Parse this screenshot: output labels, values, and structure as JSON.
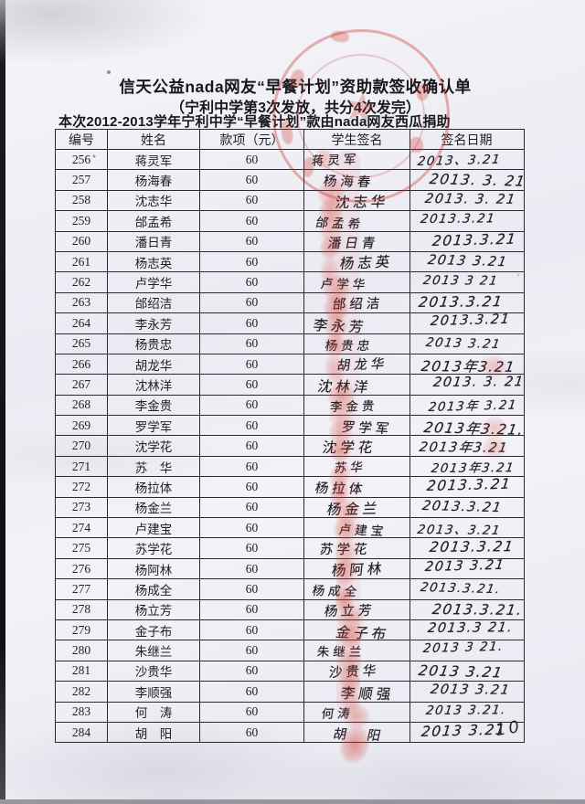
{
  "page": {
    "title": "信天公益nada网友“早餐计划”资助款签收确认单",
    "subtitle": "（宁利中学第3次发放，共分4次发完）",
    "note": "本次2012-2013学年宁利中学“早餐计划”款由nada网友西瓜捐助",
    "page_number": "10"
  },
  "table": {
    "headers": [
      "编号",
      "姓名",
      "款项（元）",
      "学生签名",
      "签名日期"
    ],
    "rows": [
      {
        "no": "256",
        "name": "蒋灵军",
        "amount": "60",
        "signature": "蒋灵军",
        "date": "2013、3.21"
      },
      {
        "no": "257",
        "name": "杨海春",
        "amount": "60",
        "signature": "杨海春",
        "date": "2013. 3. 21"
      },
      {
        "no": "258",
        "name": "沈志华",
        "amount": "60",
        "signature": "沈志华",
        "date": "2013. 3. 21"
      },
      {
        "no": "259",
        "name": "邰孟希",
        "amount": "60",
        "signature": "邰孟希",
        "date": "2013.3.21"
      },
      {
        "no": "260",
        "name": "潘日青",
        "amount": "60",
        "signature": "潘日青",
        "date": "2013.3.21"
      },
      {
        "no": "261",
        "name": "杨志英",
        "amount": "60",
        "signature": "杨志英",
        "date": "2013 3.21"
      },
      {
        "no": "262",
        "name": "卢学华",
        "amount": "60",
        "signature": "卢学华",
        "date": "2013 3 21"
      },
      {
        "no": "263",
        "name": "邰绍洁",
        "amount": "60",
        "signature": "邰绍洁",
        "date": "2013.3.21"
      },
      {
        "no": "264",
        "name": "李永芳",
        "amount": "60",
        "signature": "李永芳",
        "date": "2013.3.21"
      },
      {
        "no": "265",
        "name": "杨贵忠",
        "amount": "60",
        "signature": "杨贵忠",
        "date": "2013 3.21"
      },
      {
        "no": "266",
        "name": "胡龙华",
        "amount": "60",
        "signature": "胡龙华",
        "date": "2013年3.21"
      },
      {
        "no": "267",
        "name": "沈林洋",
        "amount": "60",
        "signature": "沈林洋",
        "date": "2013.  3. 21"
      },
      {
        "no": "268",
        "name": "李金贵",
        "amount": "60",
        "signature": "李金贵",
        "date": "2013年 3.21"
      },
      {
        "no": "269",
        "name": "罗学军",
        "amount": "60",
        "signature": "罗学军",
        "date": "2013年3.21."
      },
      {
        "no": "270",
        "name": "沈学花",
        "amount": "60",
        "signature": "沈学花",
        "date": "2013年3.21"
      },
      {
        "no": "271",
        "name": "苏　华",
        "amount": "60",
        "signature": "苏华",
        "date": "2013年3.21"
      },
      {
        "no": "272",
        "name": "杨拉体",
        "amount": "60",
        "signature": "杨拉体",
        "date": "2013.3.21"
      },
      {
        "no": "273",
        "name": "杨金兰",
        "amount": "60",
        "signature": "杨金兰",
        "date": "2013.3.21"
      },
      {
        "no": "274",
        "name": "卢建宝",
        "amount": "60",
        "signature": "卢建宝",
        "date": "2013、3.21"
      },
      {
        "no": "275",
        "name": "苏学花",
        "amount": "60",
        "signature": "苏学花",
        "date": "2013.3.21"
      },
      {
        "no": "276",
        "name": "杨阿林",
        "amount": "60",
        "signature": "杨阿林",
        "date": "2013 3.21"
      },
      {
        "no": "277",
        "name": "杨成全",
        "amount": "60",
        "signature": "杨成全",
        "date": "2013.3.21."
      },
      {
        "no": "278",
        "name": "杨立芳",
        "amount": "60",
        "signature": "杨立芳",
        "date": "2013.3.21."
      },
      {
        "no": "279",
        "name": "金子布",
        "amount": "60",
        "signature": "金子布",
        "date": "2013.3 21."
      },
      {
        "no": "280",
        "name": "朱继兰",
        "amount": "60",
        "signature": "朱继兰",
        "date": "2013 3 21."
      },
      {
        "no": "281",
        "name": "沙贵华",
        "amount": "60",
        "signature": "沙贵华",
        "date": "2013 3.21"
      },
      {
        "no": "282",
        "name": "李顺强",
        "amount": "60",
        "signature": "李顺强",
        "date": "2013 3.21"
      },
      {
        "no": "283",
        "name": "何　涛",
        "amount": "60",
        "signature": "何涛",
        "date": "2013 3.21."
      },
      {
        "no": "284",
        "name": "胡　阳",
        "amount": "60",
        "signature": "胡　阳",
        "date": "2013 3.21"
      }
    ]
  },
  "stamps": {
    "seal_description": "faded red circular official seal over title and first rows",
    "seal_star_glyph": "★",
    "fingerprint_description": "red fingerprint marks over each student signature"
  },
  "colors": {
    "seal_red": "#c73026",
    "ink": "#1e1e24",
    "paper": "#f0eff6"
  }
}
